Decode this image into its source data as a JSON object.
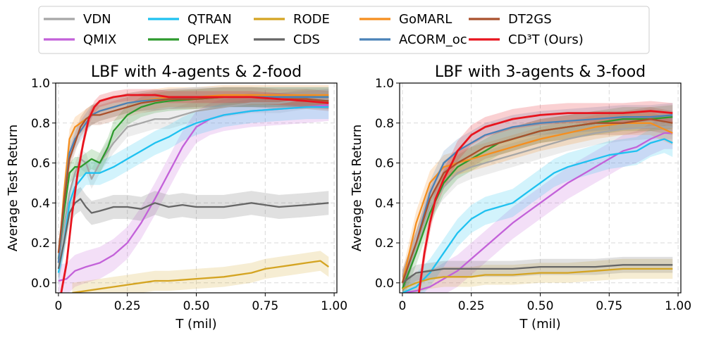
{
  "legend": {
    "items": [
      {
        "name": "VDN",
        "color": "#a6a6a6"
      },
      {
        "name": "QMIX",
        "color": "#c361d9"
      },
      {
        "name": "QTRAN",
        "color": "#1ec1f0"
      },
      {
        "name": "QPLEX",
        "color": "#2e9a2e"
      },
      {
        "name": "RODE",
        "color": "#d4a422"
      },
      {
        "name": "CDS",
        "color": "#666666"
      },
      {
        "name": "GoMARL",
        "color": "#f58e1e"
      },
      {
        "name": "ACORM_oc",
        "color": "#4a82b8"
      },
      {
        "name": "DT2GS",
        "color": "#a9502c"
      },
      {
        "name": "CD³T (Ours)",
        "color": "#e8141e"
      }
    ]
  },
  "chart_data": [
    {
      "type": "line",
      "title": "LBF with 4-agents & 2-food",
      "xlabel": "T (mil)",
      "ylabel": "Average Test Return",
      "xlim": [
        -0.01,
        1.01
      ],
      "ylim": [
        -0.05,
        1.0
      ],
      "xticks": [
        0,
        0.25,
        0.5,
        0.75,
        1.0
      ],
      "xtick_labels": [
        "0",
        "0.25",
        "0.50",
        "0.75",
        "1.00"
      ],
      "yticks": [
        0,
        0.2,
        0.4,
        0.6,
        0.8,
        1.0
      ],
      "ytick_labels": [
        "0.0",
        "0.2",
        "0.4",
        "0.6",
        "0.8",
        "1.0"
      ],
      "grid": true,
      "series": [
        {
          "name": "VDN",
          "color": "#a6a6a6",
          "band": 0.05,
          "x": [
            0,
            0.02,
            0.04,
            0.06,
            0.08,
            0.1,
            0.12,
            0.15,
            0.2,
            0.25,
            0.3,
            0.35,
            0.4,
            0.5,
            0.6,
            0.7,
            0.8,
            0.9,
            0.98
          ],
          "y": [
            0.1,
            0.28,
            0.45,
            0.55,
            0.62,
            0.6,
            0.52,
            0.6,
            0.7,
            0.78,
            0.8,
            0.82,
            0.82,
            0.86,
            0.88,
            0.9,
            0.9,
            0.92,
            0.92
          ]
        },
        {
          "name": "QMIX",
          "color": "#c361d9",
          "band": 0.08,
          "x": [
            0,
            0.03,
            0.06,
            0.1,
            0.15,
            0.2,
            0.25,
            0.3,
            0.35,
            0.4,
            0.45,
            0.5,
            0.55,
            0.6,
            0.7,
            0.8,
            0.9,
            0.98
          ],
          "y": [
            0.01,
            0.02,
            0.06,
            0.08,
            0.1,
            0.14,
            0.2,
            0.3,
            0.42,
            0.55,
            0.68,
            0.78,
            0.82,
            0.84,
            0.86,
            0.87,
            0.88,
            0.89
          ]
        },
        {
          "name": "QTRAN",
          "color": "#1ec1f0",
          "band": 0.06,
          "x": [
            0,
            0.02,
            0.04,
            0.06,
            0.1,
            0.15,
            0.2,
            0.25,
            0.3,
            0.35,
            0.4,
            0.45,
            0.5,
            0.6,
            0.7,
            0.8,
            0.9,
            0.98
          ],
          "y": [
            0.05,
            0.2,
            0.4,
            0.48,
            0.55,
            0.55,
            0.58,
            0.62,
            0.66,
            0.7,
            0.73,
            0.77,
            0.8,
            0.84,
            0.86,
            0.87,
            0.88,
            0.88
          ]
        },
        {
          "name": "QPLEX",
          "color": "#2e9a2e",
          "band": 0.05,
          "x": [
            0,
            0.02,
            0.04,
            0.06,
            0.08,
            0.1,
            0.12,
            0.15,
            0.18,
            0.2,
            0.25,
            0.3,
            0.35,
            0.4,
            0.5,
            0.6,
            0.7,
            0.8,
            0.9,
            0.98
          ],
          "y": [
            0.12,
            0.35,
            0.55,
            0.58,
            0.58,
            0.6,
            0.62,
            0.6,
            0.68,
            0.76,
            0.84,
            0.88,
            0.9,
            0.91,
            0.92,
            0.93,
            0.93,
            0.93,
            0.93,
            0.93
          ]
        },
        {
          "name": "RODE",
          "color": "#d4a422",
          "band": 0.05,
          "x": [
            0.05,
            0.1,
            0.15,
            0.2,
            0.25,
            0.3,
            0.35,
            0.4,
            0.5,
            0.6,
            0.7,
            0.75,
            0.8,
            0.85,
            0.9,
            0.95,
            0.98
          ],
          "y": [
            -0.05,
            -0.04,
            -0.03,
            -0.02,
            -0.01,
            0.0,
            0.01,
            0.01,
            0.02,
            0.03,
            0.05,
            0.07,
            0.08,
            0.09,
            0.1,
            0.11,
            0.08
          ]
        },
        {
          "name": "CDS",
          "color": "#666666",
          "band": 0.06,
          "x": [
            0,
            0.02,
            0.04,
            0.06,
            0.08,
            0.1,
            0.12,
            0.15,
            0.2,
            0.25,
            0.3,
            0.35,
            0.4,
            0.45,
            0.5,
            0.6,
            0.7,
            0.8,
            0.9,
            0.98
          ],
          "y": [
            0.07,
            0.2,
            0.35,
            0.4,
            0.42,
            0.38,
            0.35,
            0.36,
            0.38,
            0.38,
            0.37,
            0.4,
            0.38,
            0.39,
            0.38,
            0.38,
            0.4,
            0.38,
            0.39,
            0.4
          ]
        },
        {
          "name": "GoMARL",
          "color": "#f58e1e",
          "band": 0.05,
          "x": [
            0,
            0.02,
            0.04,
            0.06,
            0.08,
            0.1,
            0.12,
            0.15,
            0.2,
            0.25,
            0.3,
            0.35,
            0.4,
            0.5,
            0.6,
            0.7,
            0.8,
            0.9,
            0.98
          ],
          "y": [
            0.1,
            0.45,
            0.72,
            0.78,
            0.8,
            0.82,
            0.84,
            0.86,
            0.88,
            0.9,
            0.91,
            0.92,
            0.93,
            0.93,
            0.94,
            0.94,
            0.94,
            0.94,
            0.94
          ]
        },
        {
          "name": "ACORM_oc",
          "color": "#4a82b8",
          "band": 0.05,
          "x": [
            0,
            0.02,
            0.04,
            0.06,
            0.08,
            0.1,
            0.12,
            0.15,
            0.2,
            0.25,
            0.3,
            0.4,
            0.5,
            0.6,
            0.7,
            0.8,
            0.9,
            0.98
          ],
          "y": [
            0.1,
            0.4,
            0.65,
            0.72,
            0.76,
            0.8,
            0.84,
            0.86,
            0.88,
            0.9,
            0.91,
            0.92,
            0.93,
            0.93,
            0.93,
            0.93,
            0.93,
            0.93
          ]
        },
        {
          "name": "DT2GS",
          "color": "#a9502c",
          "band": 0.05,
          "x": [
            0,
            0.02,
            0.04,
            0.06,
            0.08,
            0.1,
            0.12,
            0.15,
            0.2,
            0.25,
            0.3,
            0.35,
            0.4,
            0.5,
            0.6,
            0.7,
            0.8,
            0.9,
            0.98
          ],
          "y": [
            0.15,
            0.4,
            0.62,
            0.7,
            0.78,
            0.82,
            0.84,
            0.84,
            0.86,
            0.88,
            0.9,
            0.91,
            0.92,
            0.92,
            0.93,
            0.93,
            0.92,
            0.92,
            0.91
          ]
        },
        {
          "name": "CD³T (Ours)",
          "color": "#e8141e",
          "band": 0.03,
          "x": [
            0.01,
            0.03,
            0.05,
            0.07,
            0.09,
            0.11,
            0.13,
            0.15,
            0.2,
            0.25,
            0.3,
            0.35,
            0.4,
            0.5,
            0.6,
            0.7,
            0.8,
            0.9,
            0.98
          ],
          "y": [
            -0.05,
            0.1,
            0.35,
            0.55,
            0.7,
            0.82,
            0.88,
            0.91,
            0.93,
            0.94,
            0.94,
            0.94,
            0.93,
            0.93,
            0.93,
            0.93,
            0.92,
            0.91,
            0.9
          ]
        }
      ]
    },
    {
      "type": "line",
      "title": "LBF with 3-agents & 3-food",
      "xlabel": "T (mil)",
      "ylabel": "Average Test Return",
      "xlim": [
        -0.01,
        1.01
      ],
      "ylim": [
        -0.05,
        1.0
      ],
      "xticks": [
        0,
        0.25,
        0.5,
        0.75,
        1.0
      ],
      "xtick_labels": [
        "0",
        "0.25",
        "0.50",
        "0.75",
        "1.00"
      ],
      "yticks": [
        0,
        0.2,
        0.4,
        0.6,
        0.8,
        1.0
      ],
      "ytick_labels": [
        "0.0",
        "0.2",
        "0.4",
        "0.6",
        "0.8",
        "1.0"
      ],
      "grid": true,
      "series": [
        {
          "name": "VDN",
          "color": "#a6a6a6",
          "band": 0.06,
          "x": [
            0,
            0.05,
            0.1,
            0.15,
            0.2,
            0.25,
            0.3,
            0.35,
            0.4,
            0.45,
            0.5,
            0.6,
            0.7,
            0.8,
            0.9,
            0.98
          ],
          "y": [
            0.0,
            0.2,
            0.38,
            0.48,
            0.55,
            0.58,
            0.6,
            0.62,
            0.64,
            0.66,
            0.68,
            0.72,
            0.75,
            0.77,
            0.78,
            0.78
          ]
        },
        {
          "name": "QMIX",
          "color": "#c361d9",
          "band": 0.08,
          "x": [
            0,
            0.05,
            0.1,
            0.15,
            0.2,
            0.25,
            0.3,
            0.35,
            0.4,
            0.45,
            0.5,
            0.55,
            0.6,
            0.65,
            0.7,
            0.75,
            0.8,
            0.85,
            0.9,
            0.95,
            0.98
          ],
          "y": [
            -0.05,
            -0.04,
            -0.02,
            0.02,
            0.06,
            0.12,
            0.18,
            0.24,
            0.3,
            0.35,
            0.4,
            0.45,
            0.5,
            0.54,
            0.58,
            0.62,
            0.66,
            0.68,
            0.72,
            0.75,
            0.75
          ]
        },
        {
          "name": "QTRAN",
          "color": "#1ec1f0",
          "band": 0.07,
          "x": [
            0,
            0.05,
            0.1,
            0.15,
            0.2,
            0.25,
            0.3,
            0.35,
            0.4,
            0.45,
            0.5,
            0.55,
            0.6,
            0.65,
            0.7,
            0.75,
            0.8,
            0.85,
            0.9,
            0.95,
            0.98
          ],
          "y": [
            -0.05,
            -0.02,
            0.05,
            0.15,
            0.25,
            0.32,
            0.36,
            0.38,
            0.4,
            0.45,
            0.5,
            0.55,
            0.58,
            0.6,
            0.62,
            0.64,
            0.65,
            0.66,
            0.7,
            0.72,
            0.7
          ]
        },
        {
          "name": "QPLEX",
          "color": "#2e9a2e",
          "band": 0.06,
          "x": [
            0,
            0.05,
            0.1,
            0.15,
            0.2,
            0.25,
            0.3,
            0.35,
            0.4,
            0.45,
            0.5,
            0.6,
            0.7,
            0.8,
            0.9,
            0.98
          ],
          "y": [
            -0.03,
            0.15,
            0.35,
            0.5,
            0.58,
            0.62,
            0.66,
            0.7,
            0.72,
            0.74,
            0.76,
            0.78,
            0.8,
            0.82,
            0.82,
            0.83
          ]
        },
        {
          "name": "RODE",
          "color": "#d4a422",
          "band": 0.05,
          "x": [
            0,
            0.05,
            0.1,
            0.15,
            0.2,
            0.25,
            0.3,
            0.4,
            0.5,
            0.6,
            0.7,
            0.8,
            0.9,
            0.98
          ],
          "y": [
            -0.03,
            0.0,
            0.02,
            0.03,
            0.03,
            0.03,
            0.04,
            0.04,
            0.05,
            0.05,
            0.06,
            0.07,
            0.07,
            0.07
          ]
        },
        {
          "name": "CDS",
          "color": "#666666",
          "band": 0.04,
          "x": [
            0,
            0.05,
            0.1,
            0.15,
            0.2,
            0.25,
            0.3,
            0.4,
            0.5,
            0.6,
            0.7,
            0.8,
            0.9,
            0.98
          ],
          "y": [
            0.0,
            0.05,
            0.06,
            0.07,
            0.07,
            0.07,
            0.07,
            0.07,
            0.08,
            0.08,
            0.08,
            0.09,
            0.09,
            0.09
          ]
        },
        {
          "name": "GoMARL",
          "color": "#f58e1e",
          "band": 0.06,
          "x": [
            0,
            0.05,
            0.1,
            0.15,
            0.2,
            0.25,
            0.3,
            0.35,
            0.4,
            0.45,
            0.5,
            0.6,
            0.7,
            0.8,
            0.9,
            0.98
          ],
          "y": [
            0.0,
            0.3,
            0.5,
            0.58,
            0.6,
            0.62,
            0.64,
            0.66,
            0.68,
            0.7,
            0.72,
            0.75,
            0.78,
            0.8,
            0.8,
            0.75
          ]
        },
        {
          "name": "ACORM_oc",
          "color": "#4a82b8",
          "band": 0.06,
          "x": [
            0,
            0.05,
            0.1,
            0.15,
            0.2,
            0.25,
            0.3,
            0.35,
            0.4,
            0.5,
            0.6,
            0.7,
            0.8,
            0.9,
            0.98
          ],
          "y": [
            0.0,
            0.2,
            0.45,
            0.6,
            0.66,
            0.7,
            0.74,
            0.76,
            0.78,
            0.8,
            0.81,
            0.82,
            0.83,
            0.83,
            0.84
          ]
        },
        {
          "name": "DT2GS",
          "color": "#a9502c",
          "band": 0.06,
          "x": [
            0,
            0.05,
            0.1,
            0.15,
            0.2,
            0.25,
            0.3,
            0.35,
            0.4,
            0.45,
            0.5,
            0.6,
            0.7,
            0.8,
            0.9,
            0.98
          ],
          "y": [
            0.0,
            0.2,
            0.42,
            0.55,
            0.6,
            0.64,
            0.68,
            0.7,
            0.72,
            0.74,
            0.76,
            0.78,
            0.8,
            0.8,
            0.82,
            0.8
          ]
        },
        {
          "name": "CD³T (Ours)",
          "color": "#e8141e",
          "band": 0.05,
          "x": [
            0.06,
            0.08,
            0.1,
            0.12,
            0.15,
            0.18,
            0.2,
            0.25,
            0.3,
            0.35,
            0.4,
            0.45,
            0.5,
            0.6,
            0.7,
            0.8,
            0.9,
            0.98
          ],
          "y": [
            -0.05,
            0.15,
            0.3,
            0.42,
            0.52,
            0.6,
            0.66,
            0.74,
            0.78,
            0.8,
            0.82,
            0.83,
            0.84,
            0.85,
            0.85,
            0.85,
            0.86,
            0.85
          ]
        }
      ]
    }
  ]
}
